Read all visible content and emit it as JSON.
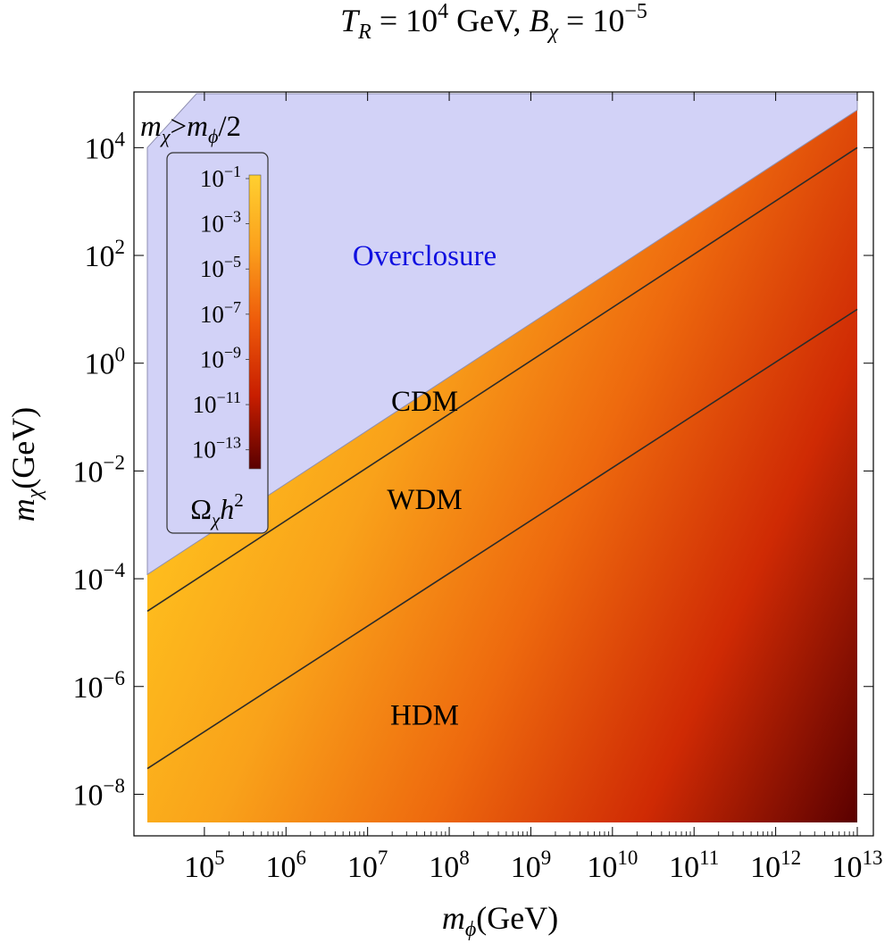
{
  "chart_data": {
    "type": "heatmap",
    "title": {
      "t_sym": "T",
      "t_sub": "R",
      "eq1": " = 10",
      "t_exp": "4",
      "unit": " GeV,  ",
      "b_sym": "B",
      "b_sub": "χ",
      "eq2": " = 10",
      "b_exp": "−5"
    },
    "xlabel": {
      "sym": "m",
      "sub": "ϕ",
      "unit": "(GeV)"
    },
    "ylabel": {
      "sym": "m",
      "sub": "χ",
      "unit": "(GeV)"
    },
    "x_scale": "log",
    "y_scale": "log",
    "xlim": [
      20000,
      10000000000000
    ],
    "ylim": [
      3e-09,
      100000
    ],
    "x_ticks": [
      {
        "base": "10",
        "exp": "5",
        "value": 100000
      },
      {
        "base": "10",
        "exp": "6",
        "value": 1000000
      },
      {
        "base": "10",
        "exp": "7",
        "value": 10000000
      },
      {
        "base": "10",
        "exp": "8",
        "value": 100000000
      },
      {
        "base": "10",
        "exp": "9",
        "value": 1000000000
      },
      {
        "base": "10",
        "exp": "10",
        "value": 10000000000
      },
      {
        "base": "10",
        "exp": "11",
        "value": 100000000000
      },
      {
        "base": "10",
        "exp": "12",
        "value": 1000000000000
      },
      {
        "base": "10",
        "exp": "13",
        "value": 10000000000000
      }
    ],
    "y_ticks": [
      {
        "base": "10",
        "exp": "4",
        "value": 10000
      },
      {
        "base": "10",
        "exp": "2",
        "value": 100
      },
      {
        "base": "10",
        "exp": "0",
        "value": 1
      },
      {
        "base": "10",
        "exp": "−2",
        "value": 0.01
      },
      {
        "base": "10",
        "exp": "−4",
        "value": 0.0001
      },
      {
        "base": "10",
        "exp": "−6",
        "value": 1e-06
      },
      {
        "base": "10",
        "exp": "−8",
        "value": 1e-08
      }
    ],
    "overclosure_boundary": [
      {
        "x": 20000,
        "y": 0.00012
      },
      {
        "x": 10000000000000,
        "y": 50000
      }
    ],
    "kinematic_region": {
      "label_sym": "m",
      "label_sub": "χ",
      "label_op": ">",
      "label_sym2": "m",
      "label_sub2": "ϕ",
      "label_tail": "/2",
      "boundary": [
        {
          "x": 20000,
          "y": 10000
        },
        {
          "x": 80000,
          "y": 100000
        },
        {
          "x": 10000000000000,
          "y": 100000
        }
      ]
    },
    "contours": [
      {
        "name": "CDM/WDM",
        "points": [
          {
            "x": 20000,
            "y": 2.5e-05
          },
          {
            "x": 10000000000000,
            "y": 10000
          }
        ]
      },
      {
        "name": "WDM/HDM",
        "points": [
          {
            "x": 20000,
            "y": 3e-08
          },
          {
            "x": 10000000000000,
            "y": 10
          }
        ]
      }
    ],
    "region_labels": [
      {
        "text": "Overclosure",
        "x": 50000000,
        "y": 100,
        "color": "#1010e0"
      },
      {
        "text": "CDM",
        "x": 50000000,
        "y": 0.2,
        "color": "#000000"
      },
      {
        "text": "WDM",
        "x": 50000000,
        "y": 0.003,
        "color": "#000000"
      },
      {
        "text": "HDM",
        "x": 50000000,
        "y": 3e-07,
        "color": "#000000"
      }
    ],
    "colorbar": {
      "label_sym": "Ω",
      "label_sub": "χ",
      "label_mid": "h",
      "label_exp": "2",
      "scale": "log",
      "range": [
        1e-14,
        0.1
      ],
      "ticks": [
        {
          "base": "10",
          "exp": "−1",
          "value": 0.1
        },
        {
          "base": "10",
          "exp": "−3",
          "value": 0.001
        },
        {
          "base": "10",
          "exp": "−5",
          "value": 1e-05
        },
        {
          "base": "10",
          "exp": "−7",
          "value": 1e-07
        },
        {
          "base": "10",
          "exp": "−9",
          "value": 1e-09
        },
        {
          "base": "10",
          "exp": "−11",
          "value": 1e-11
        },
        {
          "base": "10",
          "exp": "−13",
          "value": 1e-13
        }
      ],
      "colors": [
        "#5a0000",
        "#c81e00",
        "#ee5a0a",
        "#fba01c",
        "#ffd030"
      ]
    },
    "colors": {
      "overclosure_fill": "#d2d2f7",
      "overclosure_edge": "#8f8fb0",
      "contour_line": "#2b2b2b"
    }
  }
}
